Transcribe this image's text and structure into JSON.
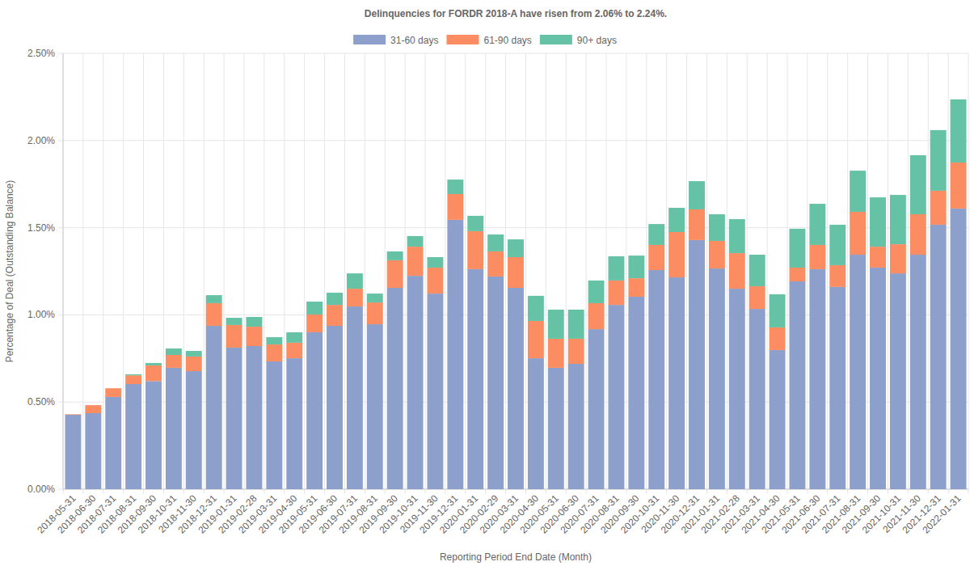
{
  "chart_data": {
    "type": "bar",
    "title": "Delinquencies for FORDR 2018-A have risen from 2.06% to 2.24%.",
    "x_label": "Reporting Period End Date (Month)",
    "y_label": "Percentage of Deal (Outstanding Balance)",
    "categories": [
      "2018-05-31",
      "2018-06-30",
      "2018-07-31",
      "2018-08-31",
      "2018-09-30",
      "2018-10-31",
      "2018-11-30",
      "2018-12-31",
      "2019-01-31",
      "2019-02-28",
      "2019-03-31",
      "2019-04-30",
      "2019-05-31",
      "2019-06-30",
      "2019-07-31",
      "2019-08-31",
      "2019-09-30",
      "2019-10-31",
      "2019-11-30",
      "2019-12-31",
      "2020-01-31",
      "2020-02-29",
      "2020-03-31",
      "2020-04-30",
      "2020-05-31",
      "2020-06-30",
      "2020-07-31",
      "2020-08-31",
      "2020-09-30",
      "2020-10-31",
      "2020-11-30",
      "2020-12-31",
      "2021-01-31",
      "2021-02-28",
      "2021-03-31",
      "2021-04-30",
      "2021-05-31",
      "2021-06-30",
      "2021-07-31",
      "2021-08-31",
      "2021-09-30",
      "2021-10-31",
      "2021-11-30",
      "2021-12-31",
      "2022-01-31"
    ],
    "series": [
      {
        "name": "31-60 days",
        "color": "#8da0cb",
        "values": [
          0.427,
          0.436,
          0.529,
          0.603,
          0.62,
          0.696,
          0.677,
          0.937,
          0.812,
          0.821,
          0.733,
          0.751,
          0.9,
          0.937,
          1.048,
          0.946,
          1.155,
          1.224,
          1.122,
          1.545,
          1.262,
          1.22,
          1.155,
          0.751,
          0.696,
          0.719,
          0.918,
          1.057,
          1.104,
          1.257,
          1.215,
          1.429,
          1.266,
          1.15,
          1.034,
          0.798,
          1.192,
          1.262,
          1.16,
          1.345,
          1.271,
          1.238,
          1.345,
          1.517,
          1.61
        ]
      },
      {
        "name": "61-90 days",
        "color": "#fc8d62",
        "values": [
          0.003,
          0.046,
          0.05,
          0.05,
          0.09,
          0.074,
          0.084,
          0.13,
          0.13,
          0.111,
          0.097,
          0.089,
          0.102,
          0.12,
          0.102,
          0.125,
          0.158,
          0.167,
          0.149,
          0.148,
          0.218,
          0.144,
          0.176,
          0.214,
          0.167,
          0.144,
          0.149,
          0.14,
          0.106,
          0.144,
          0.26,
          0.176,
          0.158,
          0.204,
          0.13,
          0.13,
          0.079,
          0.139,
          0.125,
          0.246,
          0.12,
          0.167,
          0.232,
          0.195,
          0.264
        ]
      },
      {
        "name": "90+ days",
        "color": "#66c2a5",
        "values": [
          0,
          0,
          0,
          0.006,
          0.014,
          0.037,
          0.032,
          0.046,
          0.041,
          0.056,
          0.042,
          0.06,
          0.074,
          0.07,
          0.088,
          0.051,
          0.051,
          0.061,
          0.06,
          0.083,
          0.088,
          0.097,
          0.102,
          0.144,
          0.167,
          0.167,
          0.13,
          0.139,
          0.13,
          0.12,
          0.139,
          0.162,
          0.153,
          0.195,
          0.181,
          0.19,
          0.223,
          0.236,
          0.232,
          0.236,
          0.283,
          0.283,
          0.339,
          0.348,
          0.362
        ]
      }
    ],
    "ylim": [
      0,
      2.5
    ],
    "yticks": [
      {
        "value": 0,
        "label": "0.00%"
      },
      {
        "value": 0.5,
        "label": "0.50%"
      },
      {
        "value": 1,
        "label": "1.00%"
      },
      {
        "value": 1.5,
        "label": "1.50%"
      },
      {
        "value": 2,
        "label": "2.00%"
      },
      {
        "value": 2.5,
        "label": "2.50%"
      }
    ],
    "stacked": true,
    "grid": true,
    "legend": "top"
  }
}
